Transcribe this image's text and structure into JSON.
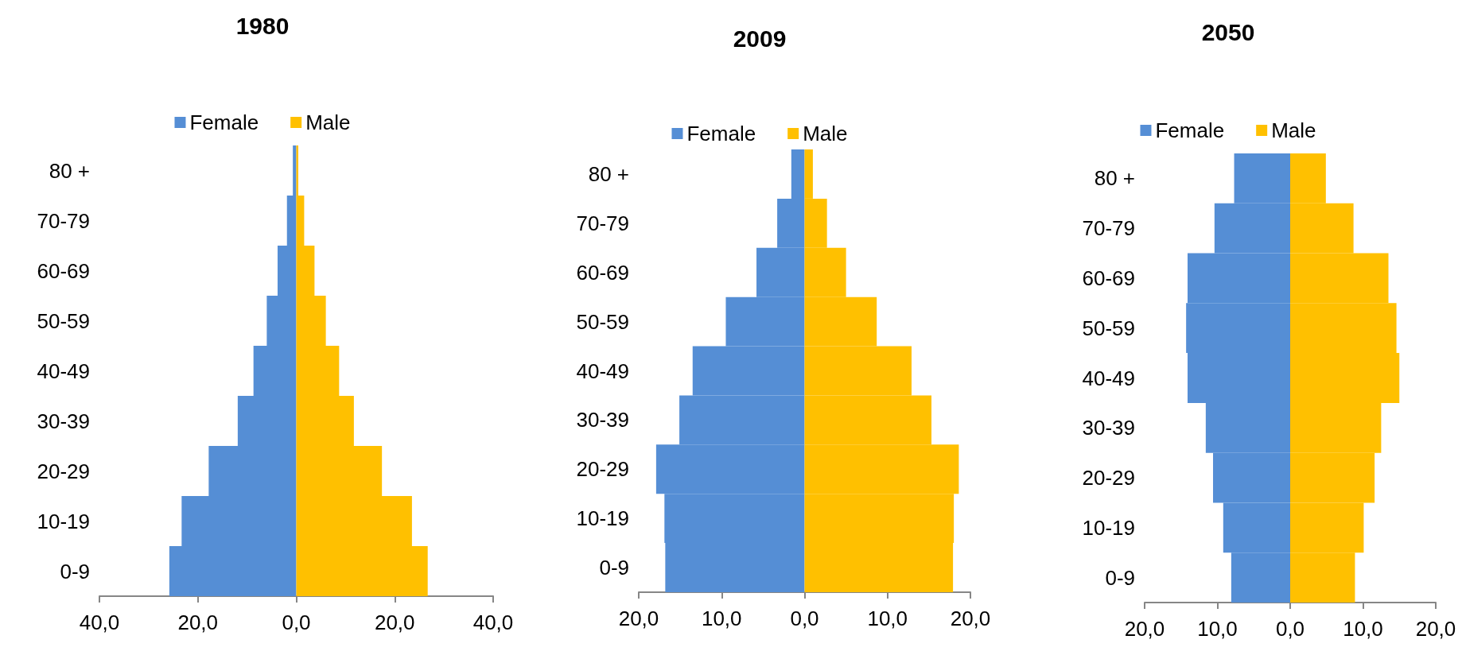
{
  "chart_data": [
    {
      "type": "bar",
      "title": "1980",
      "orientation": "horizontal",
      "stacked": true,
      "legend": "top",
      "grid": false,
      "categories": [
        "80 +",
        "70-79",
        "60-69",
        "50-59",
        "40-49",
        "30-39",
        "20-29",
        "10-19",
        "0-9"
      ],
      "series": [
        {
          "name": "Female",
          "color": "#558ed5",
          "values": [
            -0.7,
            -1.9,
            -3.8,
            -6.0,
            -8.7,
            -11.9,
            -17.8,
            -23.3,
            -25.8
          ]
        },
        {
          "name": "Male",
          "color": "#ffc000",
          "values": [
            0.4,
            1.6,
            3.7,
            6.0,
            8.7,
            11.7,
            17.4,
            23.5,
            26.7
          ]
        }
      ],
      "xlim": [
        -40,
        40
      ],
      "xticks": [
        {
          "value": -40,
          "label": "40,0"
        },
        {
          "value": -20,
          "label": "20,0"
        },
        {
          "value": 0,
          "label": "0,0"
        },
        {
          "value": 20,
          "label": "20,0"
        },
        {
          "value": 40,
          "label": "40,0"
        }
      ]
    },
    {
      "type": "bar",
      "title": "2009",
      "orientation": "horizontal",
      "stacked": true,
      "legend": "top",
      "grid": false,
      "categories": [
        "80 +",
        "70-79",
        "60-69",
        "50-59",
        "40-49",
        "30-39",
        "20-29",
        "10-19",
        "0-9"
      ],
      "series": [
        {
          "name": "Female",
          "color": "#558ed5",
          "values": [
            -1.6,
            -3.3,
            -5.8,
            -9.5,
            -13.5,
            -15.1,
            -17.9,
            -16.9,
            -16.8
          ]
        },
        {
          "name": "Male",
          "color": "#ffc000",
          "values": [
            1.0,
            2.7,
            5.0,
            8.7,
            12.9,
            15.3,
            18.6,
            18.0,
            17.9
          ]
        }
      ],
      "xlim": [
        -20,
        20
      ],
      "xticks": [
        {
          "value": -20,
          "label": "20,0"
        },
        {
          "value": -10,
          "label": "10,0"
        },
        {
          "value": 0,
          "label": "0,0"
        },
        {
          "value": 10,
          "label": "10,0"
        },
        {
          "value": 20,
          "label": "20,0"
        }
      ]
    },
    {
      "type": "bar",
      "title": "2050",
      "orientation": "horizontal",
      "stacked": true,
      "legend": "top",
      "grid": false,
      "categories": [
        "80 +",
        "70-79",
        "60-69",
        "50-59",
        "40-49",
        "30-39",
        "20-29",
        "10-19",
        "0-9"
      ],
      "series": [
        {
          "name": "Female",
          "color": "#558ed5",
          "values": [
            -7.7,
            -10.4,
            -14.1,
            -14.3,
            -14.1,
            -11.6,
            -10.6,
            -9.2,
            -8.1
          ]
        },
        {
          "name": "Male",
          "color": "#ffc000",
          "values": [
            4.9,
            8.7,
            13.5,
            14.6,
            15.0,
            12.5,
            11.6,
            10.1,
            8.9
          ]
        }
      ],
      "xlim": [
        -20,
        20
      ],
      "xticks": [
        {
          "value": -20,
          "label": "20,0"
        },
        {
          "value": -10,
          "label": "10,0"
        },
        {
          "value": 0,
          "label": "0,0"
        },
        {
          "value": 10,
          "label": "10,0"
        },
        {
          "value": 20,
          "label": "20,0"
        }
      ]
    }
  ]
}
